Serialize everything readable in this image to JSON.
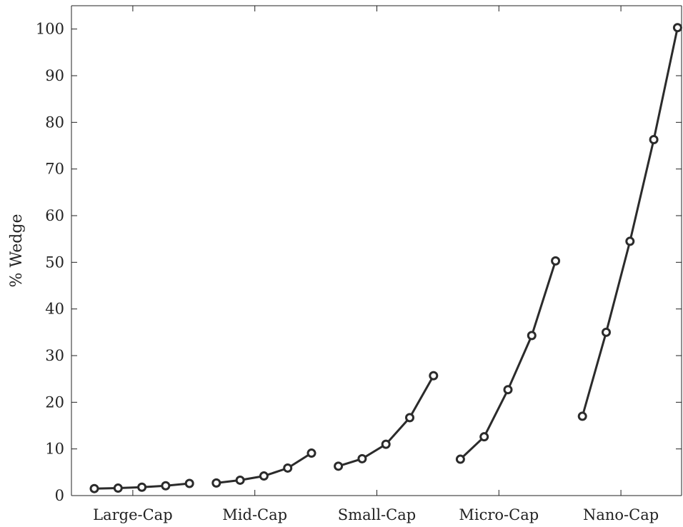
{
  "chart_data": {
    "type": "line",
    "title": "",
    "xlabel": "",
    "ylabel": "% Wedge",
    "ylim": [
      0,
      105
    ],
    "yticks": [
      0,
      10,
      20,
      30,
      40,
      50,
      60,
      70,
      80,
      90,
      100
    ],
    "categories": [
      "Large-Cap",
      "Mid-Cap",
      "Small-Cap",
      "Micro-Cap",
      "Nano-Cap"
    ],
    "points_per_group": 5,
    "grid": false,
    "legend": "none",
    "line_color": "#2b2b2b",
    "series": [
      {
        "values": [
          1.5,
          1.6,
          1.8,
          2.1,
          2.6
        ]
      },
      {
        "values": [
          2.7,
          3.3,
          4.2,
          5.9,
          9.1
        ]
      },
      {
        "values": [
          6.3,
          7.9,
          11.0,
          16.7,
          25.7
        ]
      },
      {
        "values": [
          7.8,
          12.6,
          22.7,
          34.3,
          50.3
        ]
      },
      {
        "values": [
          17.0,
          35.0,
          54.5,
          76.3,
          100.3
        ]
      }
    ]
  }
}
